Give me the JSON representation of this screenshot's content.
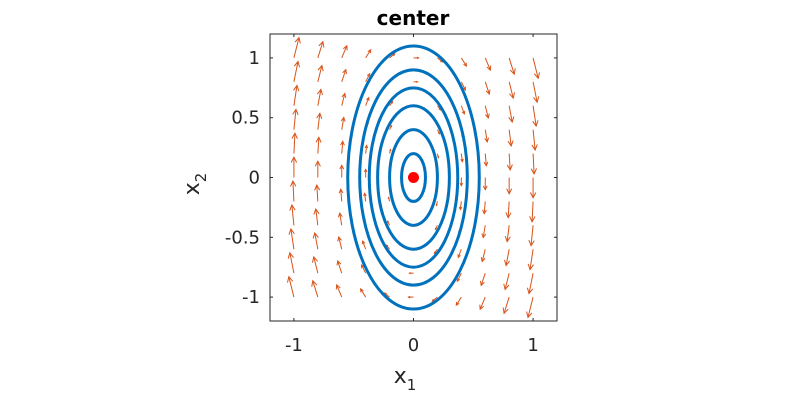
{
  "chart_data": {
    "type": "scatter",
    "title": "center",
    "xlabel": {
      "main": "x",
      "sub": "1"
    },
    "ylabel": {
      "main": "x",
      "sub": "2"
    },
    "xlim": [
      -1.2,
      1.2
    ],
    "ylim": [
      -1.2,
      1.2
    ],
    "xticks": [
      -1,
      0,
      1
    ],
    "yticks": [
      -1,
      -0.5,
      0,
      0.5,
      1
    ],
    "xtick_labels": [
      "-1",
      "0",
      "1"
    ],
    "ytick_labels": [
      "-1",
      "-0.5",
      "0",
      "0.5",
      "1"
    ],
    "grid": false,
    "equilibrium": {
      "x": 0,
      "y": 0,
      "color": "#ff0000"
    },
    "trajectories": {
      "type": "closed-orbits",
      "color": "#0072bd",
      "y_semi_axes": [
        0.2,
        0.4,
        0.6,
        0.75,
        0.9,
        1.1
      ],
      "x_semi_axes": [
        0.1,
        0.2,
        0.3,
        0.37,
        0.45,
        0.55
      ]
    },
    "vector_field": {
      "type": "quiver",
      "color": "#d95319",
      "x_grid": [
        -1.0,
        -0.8,
        -0.6,
        -0.4,
        -0.2,
        0.0,
        0.2,
        0.4,
        0.6,
        0.8,
        1.0
      ],
      "y_grid": [
        -1.0,
        -0.8,
        -0.6,
        -0.4,
        -0.2,
        0.0,
        0.2,
        0.4,
        0.6,
        0.8,
        1.0
      ],
      "dx_per_y": 0.5,
      "dy_per_x": -2.0
    }
  }
}
